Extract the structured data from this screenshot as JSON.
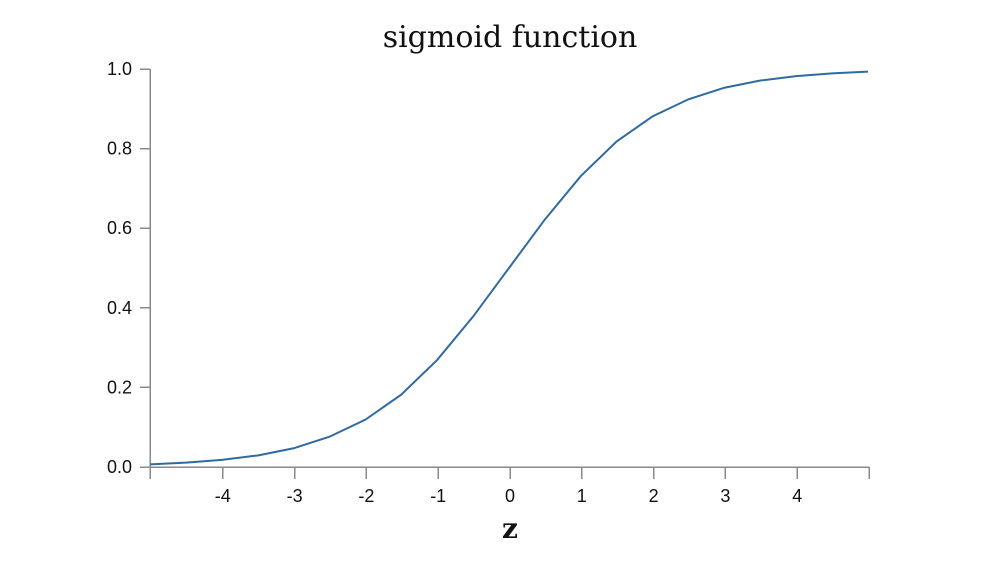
{
  "colors": {
    "series": "#2f6aa1",
    "axis": "#8a8a8a",
    "text": "#111111"
  },
  "chart_data": {
    "type": "line",
    "title": "sigmoid function",
    "xlabel": "z",
    "ylabel": "",
    "xlim": [
      -5,
      5
    ],
    "ylim": [
      0,
      1
    ],
    "x_ticks": [
      -4,
      -3,
      -2,
      -1,
      0,
      1,
      2,
      3,
      4
    ],
    "x_tick_labels": [
      "-4",
      "-3",
      "-2",
      "-1",
      "0",
      "1",
      "2",
      "3",
      "4"
    ],
    "y_ticks": [
      0,
      0.2,
      0.4,
      0.6,
      0.8,
      1
    ],
    "y_tick_labels": [
      "0.0",
      "0.2",
      "0.4",
      "0.6",
      "0.8",
      "1.0"
    ],
    "grid": false,
    "legend": "none",
    "series": [
      {
        "x": [
          -5,
          -4.5,
          -4,
          -3.5,
          -3,
          -2.5,
          -2,
          -1.5,
          -1,
          -0.5,
          0,
          0.5,
          1,
          1.5,
          2,
          2.5,
          3,
          3.5,
          4,
          4.5,
          5
        ],
        "y": [
          0.0067,
          0.011,
          0.018,
          0.029,
          0.047,
          0.076,
          0.119,
          0.182,
          0.269,
          0.378,
          0.5,
          0.622,
          0.731,
          0.818,
          0.881,
          0.924,
          0.953,
          0.971,
          0.982,
          0.989,
          0.9933
        ]
      }
    ]
  }
}
